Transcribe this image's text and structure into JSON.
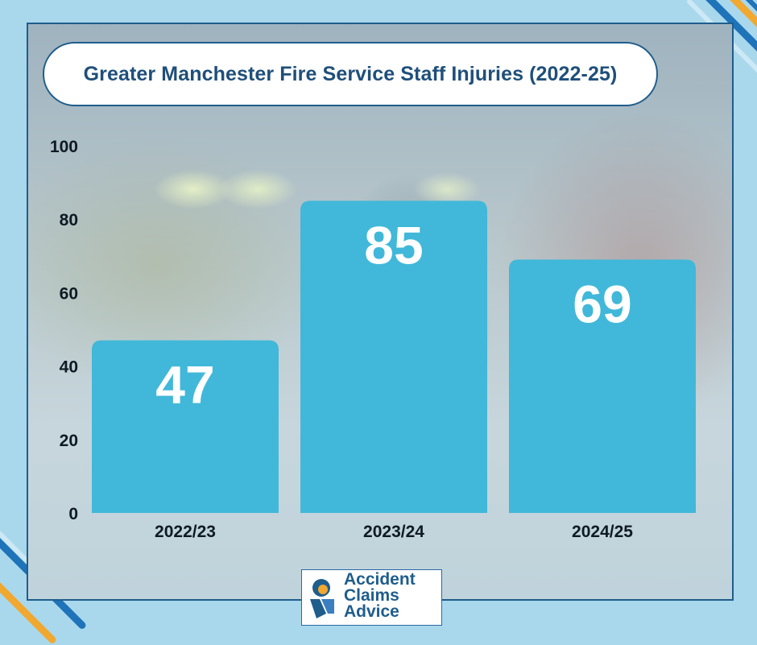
{
  "chart_data": {
    "type": "bar",
    "title": "Greater Manchester Fire Service Staff Injuries (2022-25)",
    "categories": [
      "2022/23",
      "2023/24",
      "2024/25"
    ],
    "values": [
      47,
      85,
      69
    ],
    "data_labels": [
      "47",
      "85",
      "69"
    ],
    "ylim": [
      0,
      100
    ],
    "yticks": [
      "0",
      "20",
      "40",
      "60",
      "80",
      "100"
    ],
    "xlabel": "",
    "ylabel": "",
    "grid": false,
    "bar_color": "#41b8d9",
    "label_color": "#ffffff"
  },
  "logo": {
    "lines": [
      "Accident",
      "Claims",
      "Advice"
    ],
    "icon": "accident-claims-advice-logo-icon"
  },
  "colors": {
    "background": "#a9d8ec",
    "border": "#1f5d8c",
    "title_text": "#1f4f7a",
    "stripe_dark": "#1e73b9",
    "stripe_orange": "#f0a830",
    "stripe_light": "#cde9f5"
  }
}
